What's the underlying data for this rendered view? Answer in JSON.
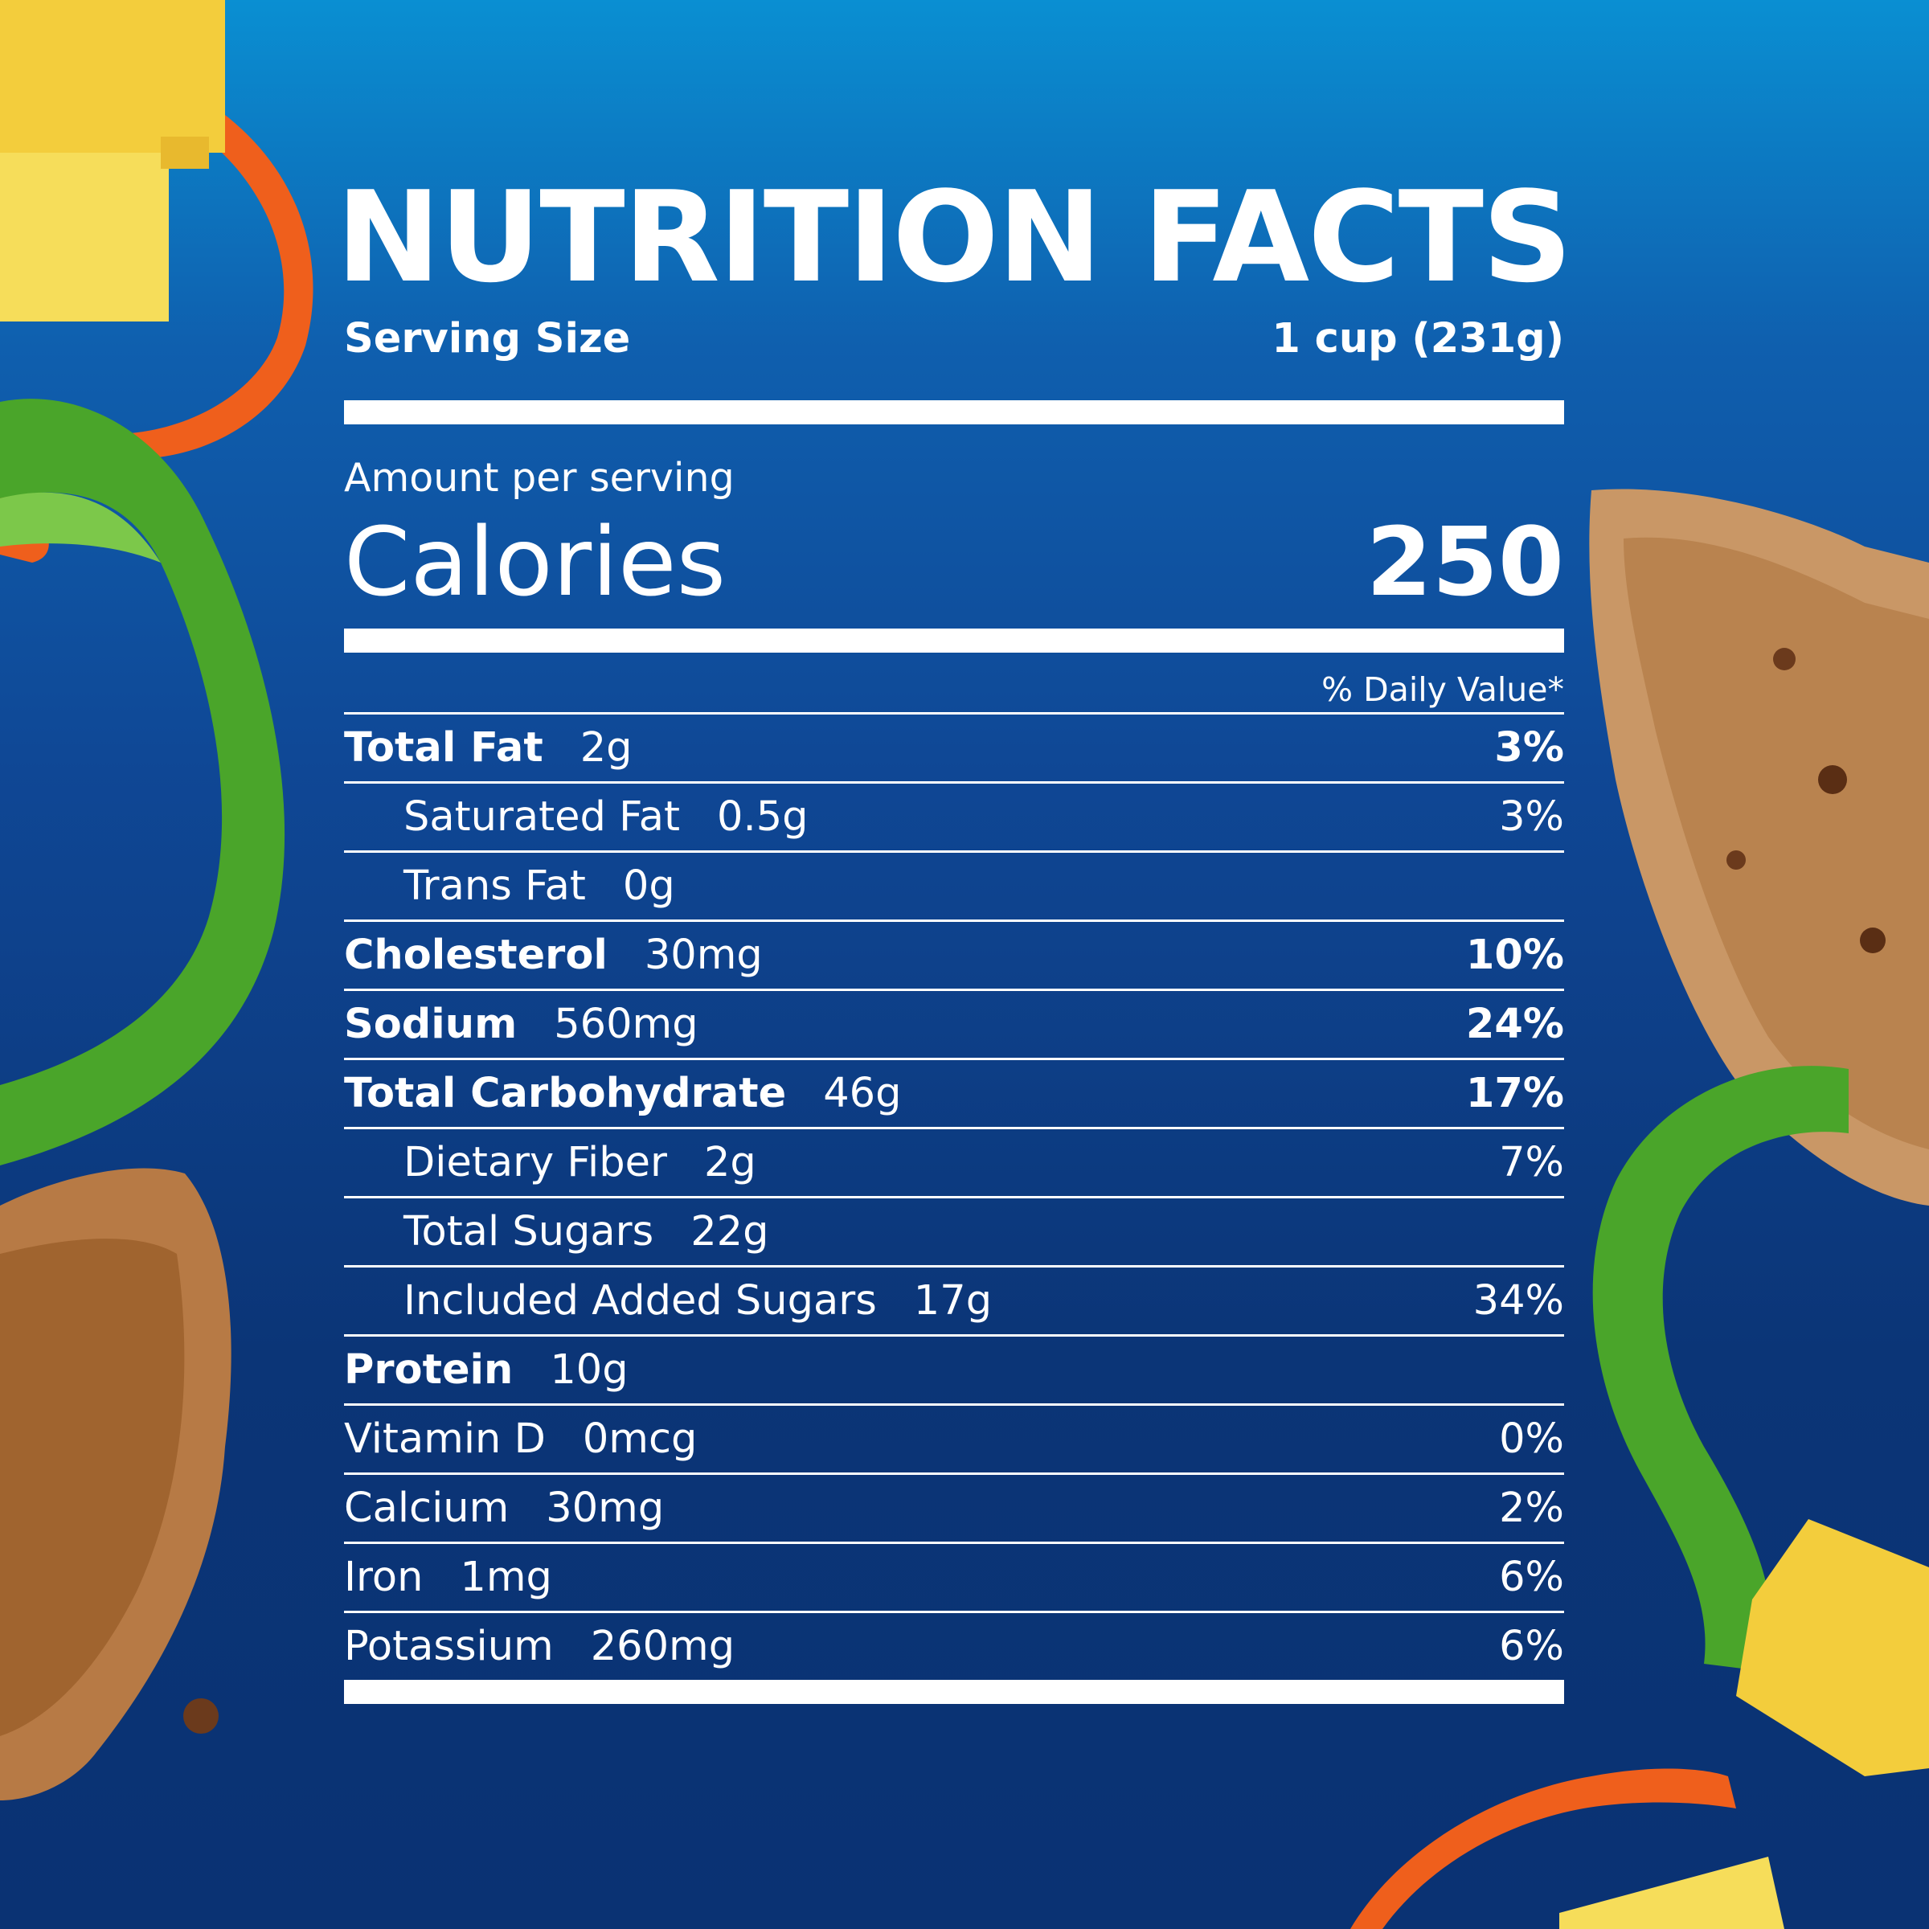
{
  "label": {
    "title": "NUTRITION FACTS",
    "serving_size_label": "Serving Size",
    "serving_size_value": "1 cup (231g)",
    "amount_per_serving": "Amount per serving",
    "calories_label": "Calories",
    "calories_value": "250",
    "daily_value_header": "% Daily Value*"
  },
  "nutrients": [
    {
      "name": "Total Fat",
      "amount": "2g",
      "dv": "3%",
      "bold": true,
      "indent": false
    },
    {
      "name": "Saturated Fat",
      "amount": "0.5g",
      "dv": "3%",
      "bold": false,
      "indent": true
    },
    {
      "name": "Trans Fat",
      "amount": "0g",
      "dv": "",
      "bold": false,
      "indent": true
    },
    {
      "name": "Cholesterol",
      "amount": "30mg",
      "dv": "10%",
      "bold": true,
      "indent": false
    },
    {
      "name": "Sodium",
      "amount": "560mg",
      "dv": "24%",
      "bold": true,
      "indent": false
    },
    {
      "name": "Total Carbohydrate",
      "amount": "46g",
      "dv": "17%",
      "bold": true,
      "indent": false
    },
    {
      "name": "Dietary Fiber",
      "amount": "2g",
      "dv": "7%",
      "bold": false,
      "indent": true
    },
    {
      "name": "Total Sugars",
      "amount": "22g",
      "dv": "",
      "bold": false,
      "indent": true
    },
    {
      "name": "Included Added Sugars",
      "amount": "17g",
      "dv": "34%",
      "bold": false,
      "indent": true
    },
    {
      "name": "Protein",
      "amount": "10g",
      "dv": "",
      "bold": true,
      "indent": false
    },
    {
      "name": "Vitamin D",
      "amount": "0mcg",
      "dv": "0%",
      "bold": false,
      "indent": false
    },
    {
      "name": "Calcium",
      "amount": "30mg",
      "dv": "2%",
      "bold": false,
      "indent": false
    },
    {
      "name": "Iron",
      "amount": "1mg",
      "dv": "6%",
      "bold": false,
      "indent": false
    },
    {
      "name": "Potassium",
      "amount": "260mg",
      "dv": "6%",
      "bold": false,
      "indent": false
    }
  ],
  "colors": {
    "background_top": "#0a8fd2",
    "background_bottom": "#0a3273",
    "text": "#ffffff",
    "pepper_green": "#4aa52a",
    "pepper_orange": "#f0641e",
    "pineapple": "#f4d24a",
    "chicken": "#b77a45"
  },
  "decorations": [
    "pineapple-chunk",
    "orange-pepper-ring",
    "green-pepper-ring",
    "grilled-chicken-piece"
  ]
}
